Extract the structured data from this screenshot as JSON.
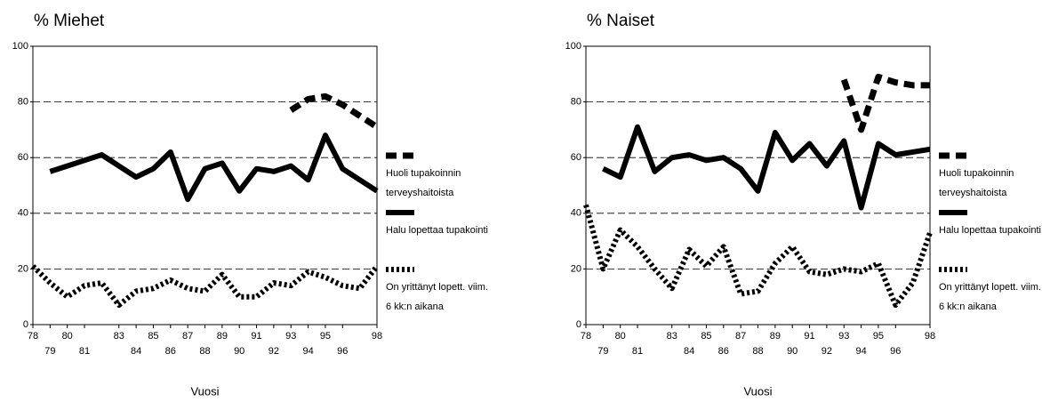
{
  "chart_data": [
    {
      "type": "line",
      "title": "% Miehet",
      "xlabel": "Vuosi",
      "xlim": [
        78,
        98
      ],
      "xticks": [
        78,
        79,
        80,
        81,
        83,
        84,
        85,
        86,
        87,
        88,
        89,
        90,
        91,
        92,
        93,
        94,
        95,
        96,
        98
      ],
      "ylim": [
        0,
        100
      ],
      "yticks": [
        0,
        20,
        40,
        60,
        80,
        100
      ],
      "grid": true,
      "legend": "right",
      "series": [
        {
          "name": "Huoli tupakoinnin terveyshaitoista",
          "color": "#000000",
          "style": "dashed",
          "x": [
            93,
            94,
            95,
            96,
            97,
            98
          ],
          "values": [
            77,
            81,
            82,
            79,
            75,
            71
          ]
        },
        {
          "name": "Halu lopettaa tupakointi",
          "color": "#000000",
          "style": "solid",
          "x": [
            79,
            80,
            81,
            82,
            83,
            84,
            85,
            86,
            87,
            88,
            89,
            90,
            91,
            92,
            93,
            94,
            95,
            96,
            97,
            98
          ],
          "values": [
            55,
            57,
            59,
            61,
            57,
            53,
            56,
            62,
            45,
            56,
            58,
            48,
            56,
            55,
            57,
            52,
            68,
            56,
            52,
            48
          ]
        },
        {
          "name": "On yrittänyt lopett. viim. 6 kk:n aikana",
          "color": "#000000",
          "style": "dotted",
          "x": [
            78,
            79,
            80,
            81,
            82,
            83,
            84,
            85,
            86,
            87,
            88,
            89,
            90,
            91,
            92,
            93,
            94,
            95,
            96,
            97,
            98
          ],
          "values": [
            21,
            15,
            10,
            14,
            15,
            7,
            12,
            13,
            16,
            13,
            12,
            18,
            10,
            10,
            15,
            14,
            19,
            17,
            14,
            13,
            21
          ]
        }
      ]
    },
    {
      "type": "line",
      "title": "% Naiset",
      "xlabel": "Vuosi",
      "xlim": [
        78,
        98
      ],
      "xticks": [
        78,
        79,
        80,
        81,
        83,
        84,
        85,
        86,
        87,
        88,
        89,
        90,
        91,
        92,
        93,
        94,
        95,
        96,
        98
      ],
      "ylim": [
        0,
        100
      ],
      "yticks": [
        0,
        20,
        40,
        60,
        80,
        100
      ],
      "grid": true,
      "legend": "right",
      "series": [
        {
          "name": "Huoli tupakoinnin terveyshaitoista",
          "color": "#000000",
          "style": "dashed",
          "x": [
            93,
            94,
            95,
            96,
            97,
            98
          ],
          "values": [
            88,
            70,
            89,
            87,
            86,
            86
          ]
        },
        {
          "name": "Halu lopettaa tupakointi",
          "color": "#000000",
          "style": "solid",
          "x": [
            79,
            80,
            81,
            82,
            83,
            84,
            85,
            86,
            87,
            88,
            89,
            90,
            91,
            92,
            93,
            94,
            95,
            96,
            97,
            98
          ],
          "values": [
            56,
            53,
            71,
            55,
            60,
            61,
            59,
            60,
            56,
            48,
            69,
            59,
            65,
            57,
            66,
            42,
            65,
            61,
            62,
            63
          ]
        },
        {
          "name": "On yrittänyt lopett. viim. 6 kk:n aikana",
          "color": "#000000",
          "style": "dotted",
          "x": [
            78,
            79,
            80,
            81,
            82,
            83,
            84,
            85,
            86,
            87,
            88,
            89,
            90,
            91,
            92,
            93,
            94,
            95,
            96,
            97,
            98
          ],
          "values": [
            43,
            20,
            34,
            28,
            20,
            13,
            27,
            21,
            28,
            11,
            12,
            22,
            28,
            19,
            18,
            20,
            19,
            22,
            7,
            15,
            33
          ]
        }
      ]
    }
  ]
}
